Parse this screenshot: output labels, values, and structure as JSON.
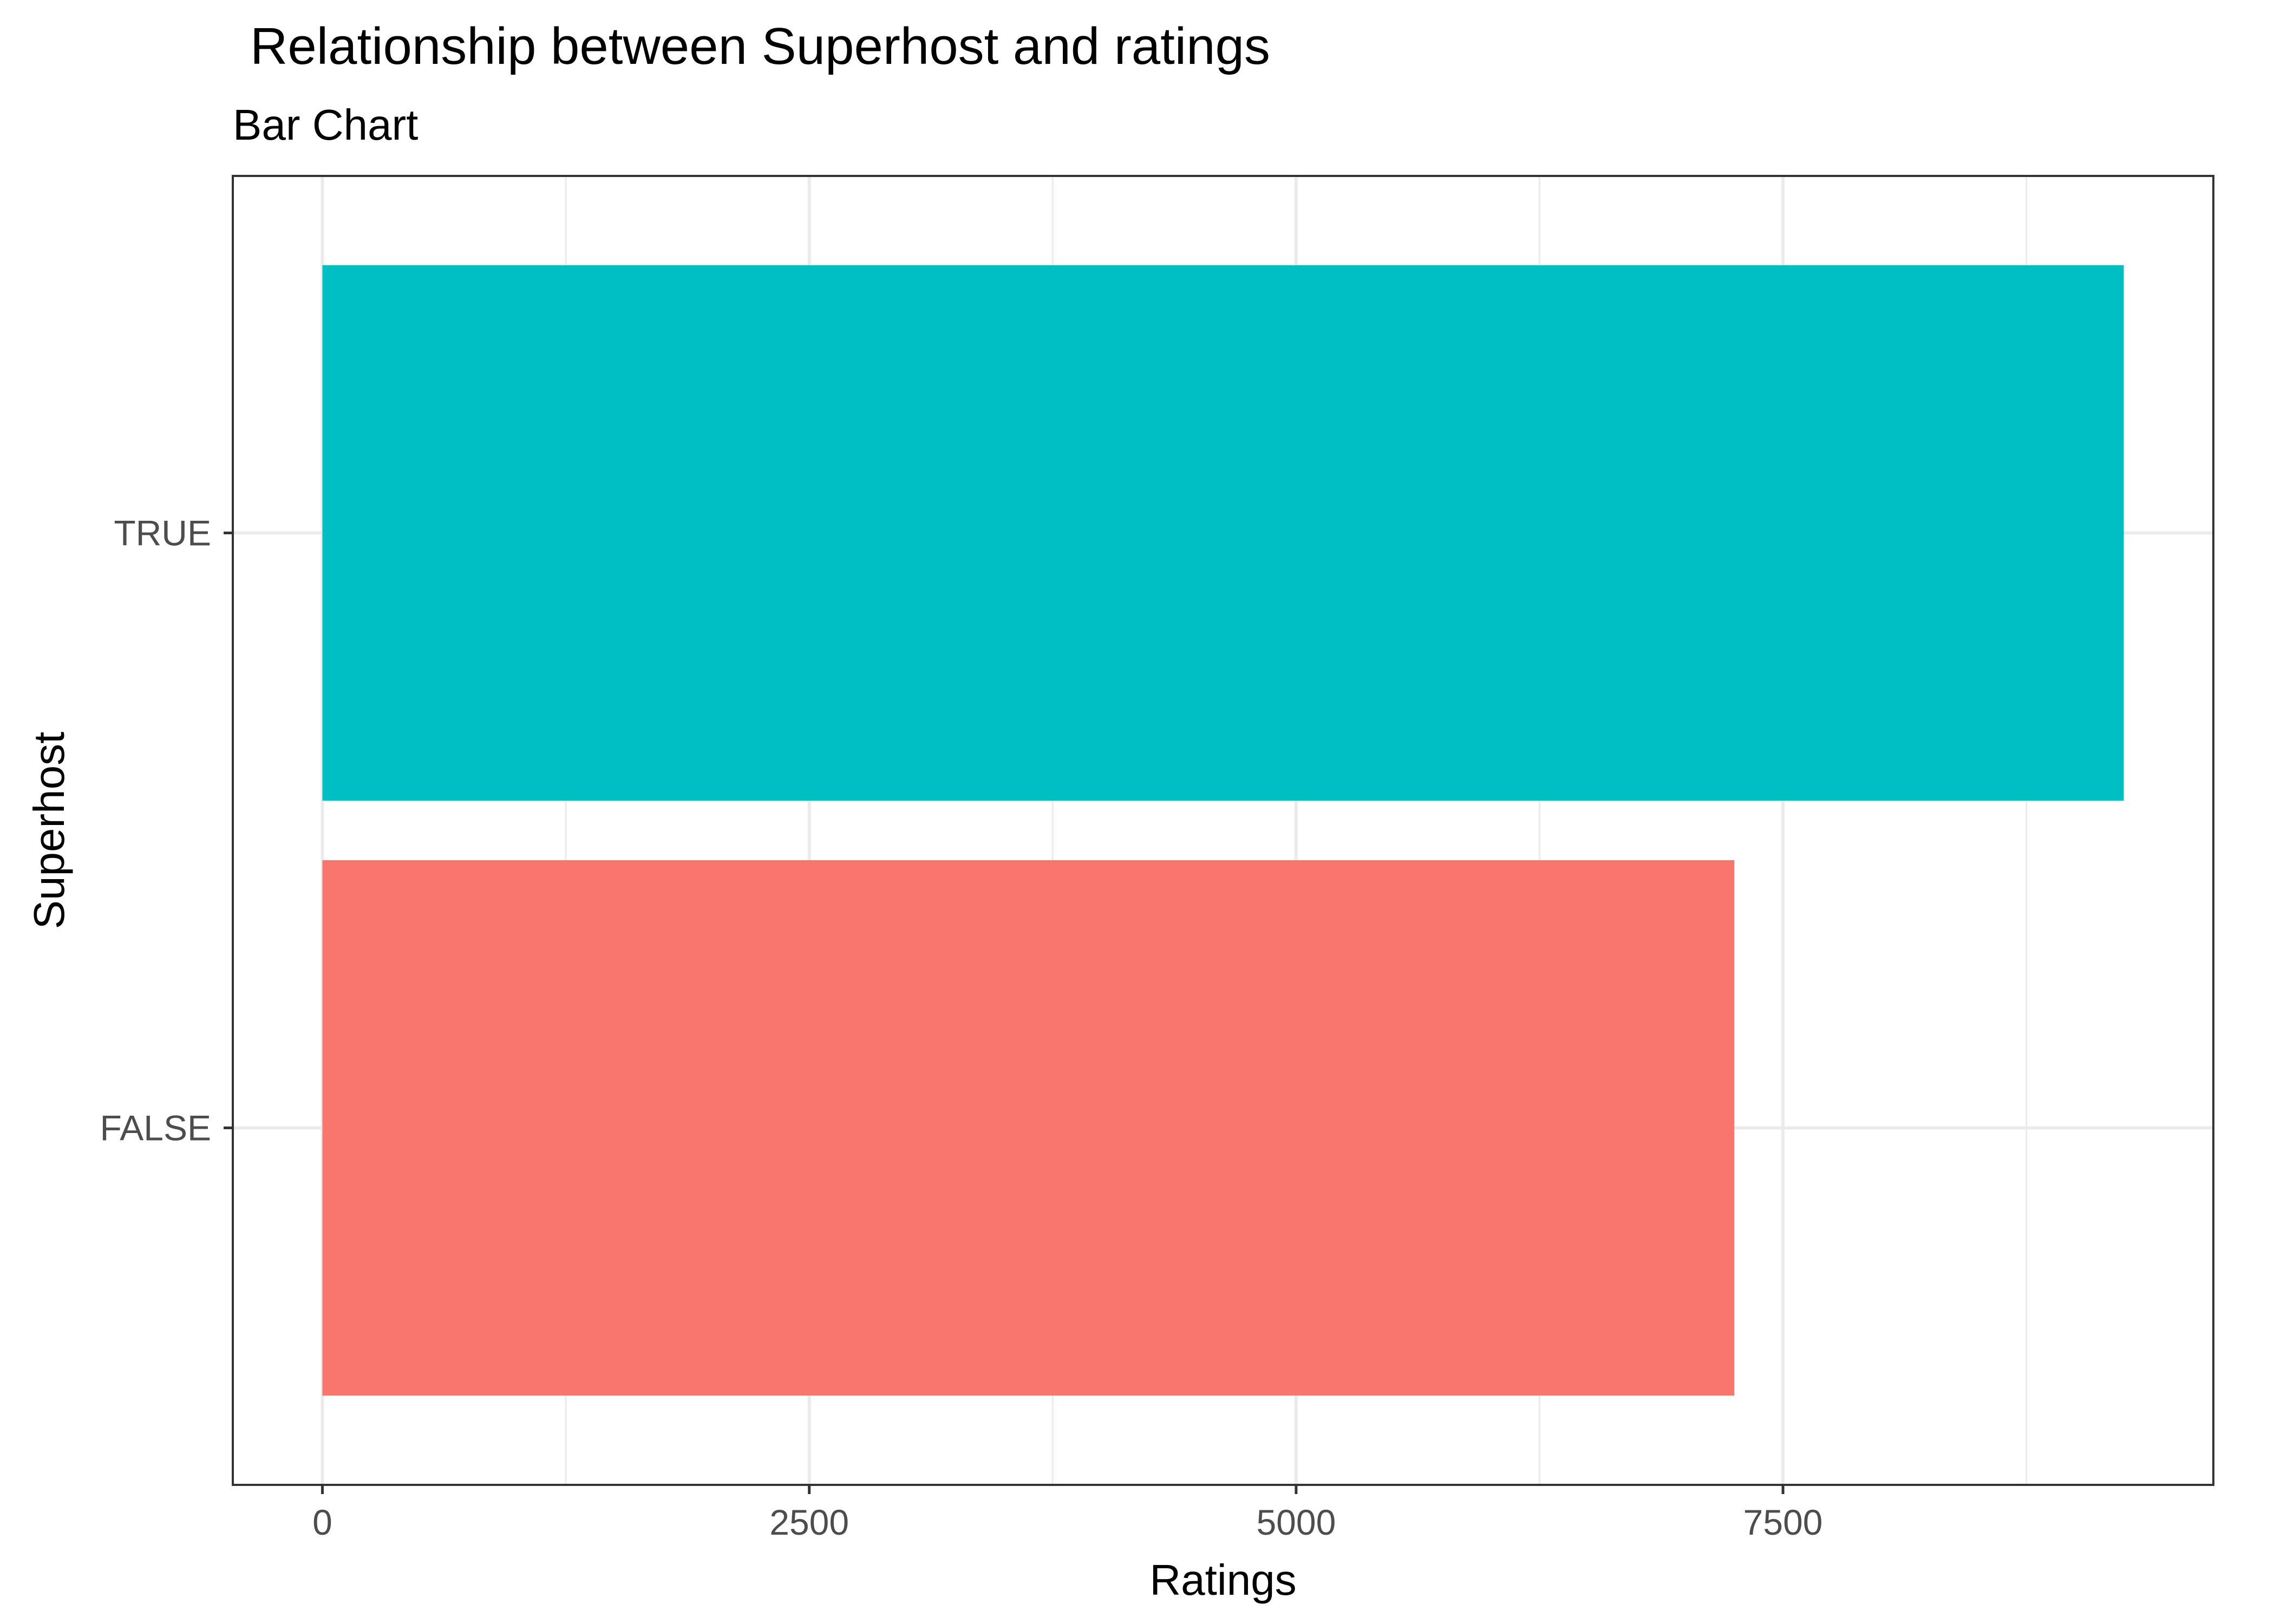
{
  "chart_data": {
    "type": "bar",
    "orientation": "horizontal",
    "title": "Relationship between Superhost and ratings",
    "subtitle": "Bar Chart",
    "xlabel": "Ratings",
    "ylabel": "Superhost",
    "categories": [
      "FALSE",
      "TRUE"
    ],
    "values": [
      7250,
      9250
    ],
    "colors": [
      "#F8766D",
      "#00BFC4"
    ],
    "xlim": [
      -460,
      9710
    ],
    "xticks": [
      0,
      2500,
      5000,
      7500
    ],
    "xtick_labels": [
      "0",
      "2500",
      "5000",
      "7500"
    ],
    "grid": true,
    "legend": "none"
  }
}
